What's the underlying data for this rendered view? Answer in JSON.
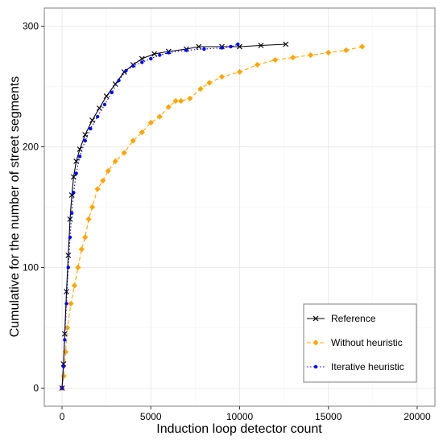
{
  "chart_data": {
    "type": "line",
    "xlabel": "Induction loop detector count",
    "ylabel": "Cumulative for the number of street segments",
    "xlim": [
      -1000,
      21000
    ],
    "ylim": [
      -15,
      315
    ],
    "x_ticks": [
      0,
      5000,
      10000,
      15000,
      20000
    ],
    "y_ticks": [
      0,
      100,
      200,
      300
    ],
    "x_tick_labels": [
      "0",
      "5000",
      "10000",
      "15000",
      "20000"
    ],
    "y_tick_labels": [
      "0",
      "100",
      "200",
      "300"
    ],
    "grid": true,
    "legend_position": "bottom-right",
    "series": [
      {
        "name": "Reference",
        "color": "#000000",
        "marker": "x",
        "line": "solid",
        "points": [
          [
            0,
            0
          ],
          [
            80,
            20
          ],
          [
            150,
            45
          ],
          [
            250,
            80
          ],
          [
            350,
            110
          ],
          [
            450,
            140
          ],
          [
            550,
            160
          ],
          [
            650,
            175
          ],
          [
            800,
            188
          ],
          [
            1000,
            198
          ],
          [
            1300,
            210
          ],
          [
            1700,
            222
          ],
          [
            2100,
            232
          ],
          [
            2500,
            242
          ],
          [
            3000,
            252
          ],
          [
            3500,
            262
          ],
          [
            4000,
            268
          ],
          [
            4500,
            273
          ],
          [
            5200,
            277
          ],
          [
            6000,
            279
          ],
          [
            7000,
            281
          ],
          [
            7700,
            283
          ],
          [
            9000,
            283
          ],
          [
            10000,
            283
          ],
          [
            11200,
            284
          ],
          [
            12600,
            285
          ]
        ]
      },
      {
        "name": "Without heuristic",
        "color": "#FFA500",
        "marker": "diamond",
        "line": "dashed",
        "points": [
          [
            0,
            0
          ],
          [
            100,
            10
          ],
          [
            200,
            30
          ],
          [
            300,
            50
          ],
          [
            500,
            70
          ],
          [
            700,
            85
          ],
          [
            900,
            100
          ],
          [
            1100,
            115
          ],
          [
            1300,
            125
          ],
          [
            1500,
            140
          ],
          [
            1700,
            150
          ],
          [
            2000,
            165
          ],
          [
            2300,
            172
          ],
          [
            2600,
            180
          ],
          [
            3000,
            188
          ],
          [
            3500,
            195
          ],
          [
            4000,
            205
          ],
          [
            4500,
            212
          ],
          [
            5000,
            220
          ],
          [
            5500,
            225
          ],
          [
            6000,
            233
          ],
          [
            6400,
            238
          ],
          [
            6700,
            238
          ],
          [
            7200,
            240
          ],
          [
            7800,
            248
          ],
          [
            8300,
            253
          ],
          [
            9000,
            258
          ],
          [
            10000,
            262
          ],
          [
            11000,
            268
          ],
          [
            12000,
            272
          ],
          [
            13000,
            274
          ],
          [
            14000,
            276
          ],
          [
            15000,
            278
          ],
          [
            16000,
            280
          ],
          [
            16900,
            283
          ]
        ]
      },
      {
        "name": "Iterative heuristic",
        "color": "#0000FF",
        "marker": "dot",
        "line": "dotted",
        "points": [
          [
            0,
            0
          ],
          [
            80,
            18
          ],
          [
            150,
            40
          ],
          [
            250,
            70
          ],
          [
            350,
            100
          ],
          [
            450,
            125
          ],
          [
            550,
            145
          ],
          [
            650,
            162
          ],
          [
            800,
            178
          ],
          [
            1000,
            192
          ],
          [
            1300,
            205
          ],
          [
            1600,
            215
          ],
          [
            2000,
            225
          ],
          [
            2400,
            235
          ],
          [
            2800,
            245
          ],
          [
            3200,
            255
          ],
          [
            3600,
            263
          ],
          [
            4000,
            267
          ],
          [
            4500,
            270
          ],
          [
            5000,
            273
          ],
          [
            5500,
            276
          ],
          [
            6000,
            278
          ],
          [
            7000,
            280
          ],
          [
            8000,
            281
          ],
          [
            9000,
            282
          ],
          [
            9500,
            283
          ],
          [
            9900,
            285
          ]
        ]
      }
    ]
  }
}
